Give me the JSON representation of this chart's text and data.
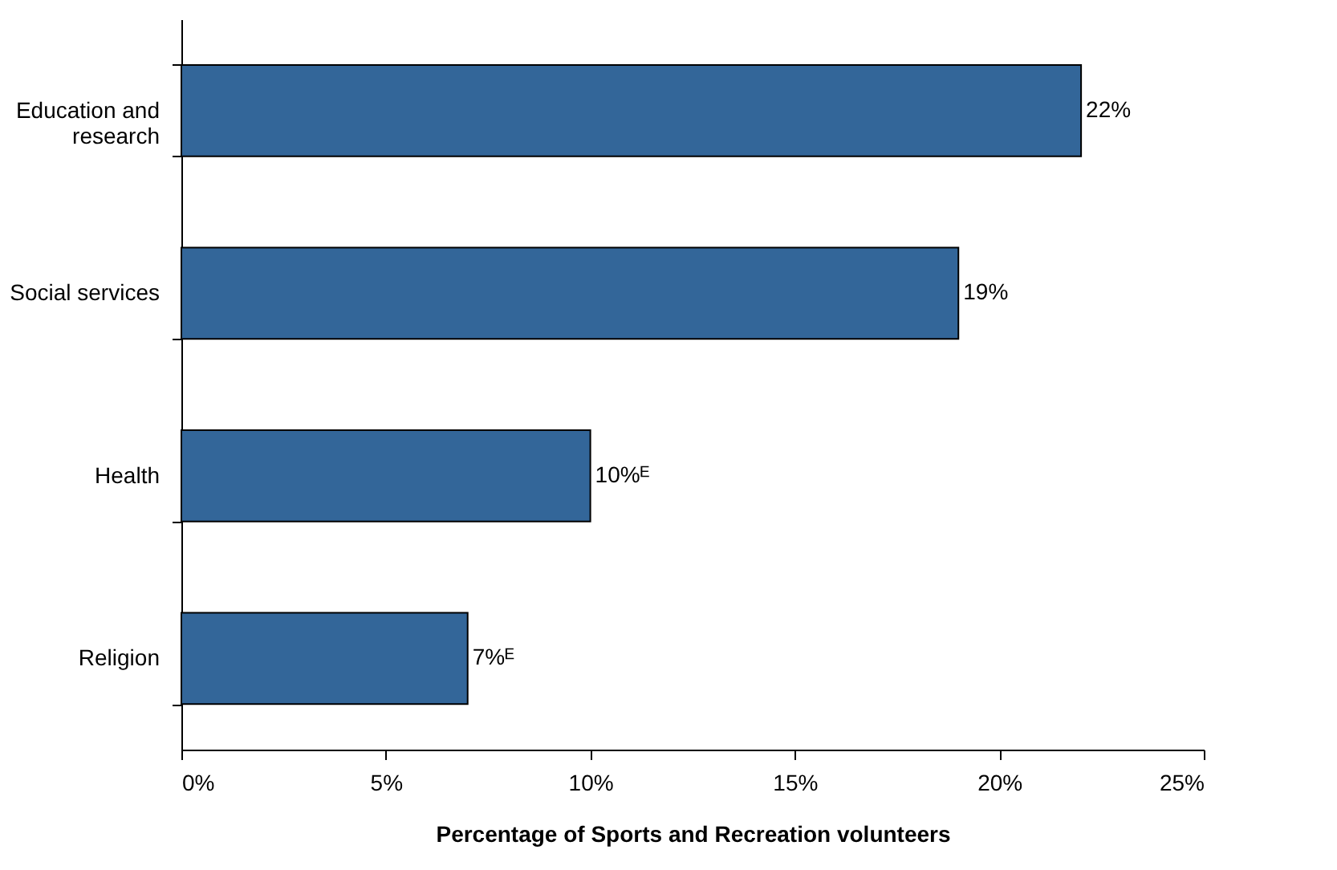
{
  "chart_data": {
    "type": "bar",
    "orientation": "horizontal",
    "xlabel": "Percentage of Sports and Recreation volunteers",
    "categories": [
      "Education and research",
      "Social services",
      "Health",
      "Religion"
    ],
    "values": [
      22,
      19,
      10,
      7
    ],
    "value_labels": [
      "22%",
      "19%",
      "10%ᴱ",
      "7%ᴱ"
    ],
    "color": "#336699",
    "xlim": [
      0,
      25
    ],
    "xticks": [
      {
        "value": 0,
        "label": "0%"
      },
      {
        "value": 5,
        "label": "5%"
      },
      {
        "value": 10,
        "label": "10%"
      },
      {
        "value": 15,
        "label": "15%"
      },
      {
        "value": 20,
        "label": "20%"
      },
      {
        "value": 25,
        "label": "25%"
      }
    ],
    "grid": false
  }
}
